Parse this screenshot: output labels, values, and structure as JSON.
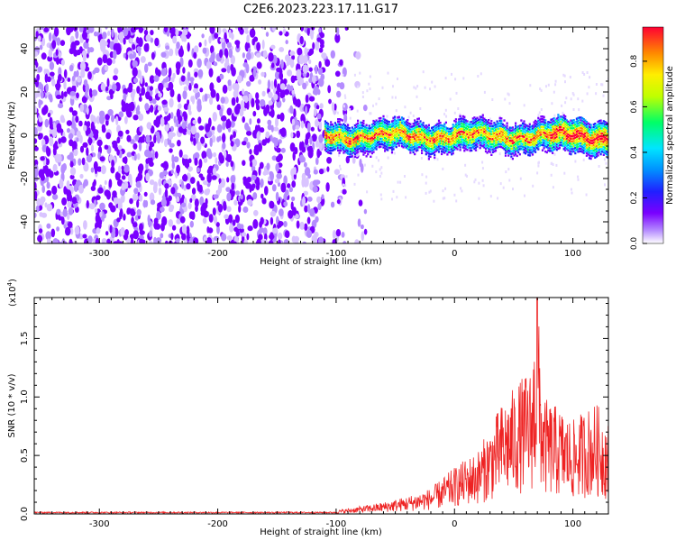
{
  "title": "C2E6.2023.223.17.11.G17",
  "colors": {
    "snr_line": "#ee2222",
    "colormap": [
      "#ffffff",
      "#8a2be2",
      "#7a00ff",
      "#2020ff",
      "#0090ff",
      "#00e5ff",
      "#00ff66",
      "#c0ff00",
      "#ffee00",
      "#ff8800",
      "#ff0033"
    ]
  },
  "chart_data": [
    {
      "type": "heatmap",
      "title": "C2E6.2023.223.17.11.G17",
      "xlabel": "Height of straight line (km)",
      "ylabel": "Frequency (Hz)",
      "xlim": [
        -355,
        130
      ],
      "ylim": [
        -50,
        50
      ],
      "xticks": [
        -300,
        -200,
        -100,
        0,
        100
      ],
      "yticks": [
        -40,
        -20,
        0,
        20,
        40
      ],
      "colorbar": {
        "label": "Normalized spectral amplitude",
        "range": [
          0.0,
          0.95
        ],
        "ticks": [
          "0.0",
          "0.2",
          "0.4",
          "0.6",
          "0.8"
        ]
      },
      "description_values": {
        "noise_region_x": [
          -355,
          -100
        ],
        "signal_band_x": [
          -110,
          130
        ],
        "signal_band_center_hz": 0,
        "signal_band_halfwidth_hz": 5,
        "peak_amplitude": 0.95
      }
    },
    {
      "type": "line",
      "xlabel": "Height of straight line (km)",
      "ylabel": "SNR (10 * v/v)",
      "scale_label": "(x10",
      "scale_exp": "4",
      "scale_close": ")",
      "xlim": [
        -355,
        130
      ],
      "ylim": [
        0,
        1.85
      ],
      "xticks": [
        -300,
        -200,
        -100,
        0,
        100
      ],
      "yticks": [
        "0.0",
        "0.5",
        "1.0",
        "1.5"
      ],
      "envelope": {
        "x": [
          -355,
          -120,
          -100,
          -60,
          -40,
          -20,
          0,
          20,
          40,
          55,
          65,
          70,
          75,
          90,
          100,
          110,
          120,
          130
        ],
        "y": [
          0.01,
          0.012,
          0.03,
          0.1,
          0.15,
          0.22,
          0.4,
          0.55,
          0.95,
          1.15,
          1.25,
          1.85,
          1.0,
          0.9,
          0.8,
          0.9,
          0.95,
          0.8
        ]
      }
    }
  ]
}
